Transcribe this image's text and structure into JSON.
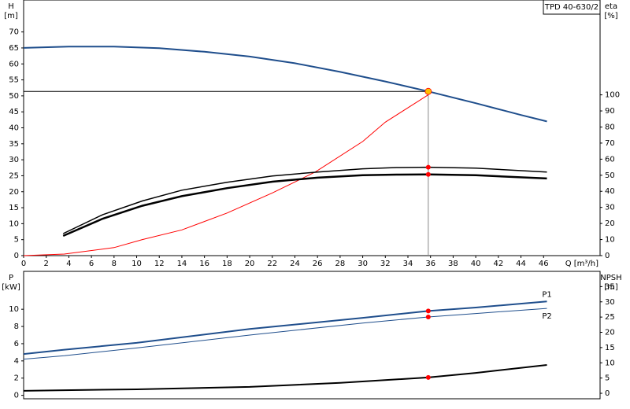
{
  "chart_data": [
    {
      "type": "line",
      "title": "TPD 40-630/2",
      "ylabel": [
        "H",
        "[m]"
      ],
      "y2label": [
        "eta",
        "[%]"
      ],
      "xlabel": "Q [m³/h]",
      "xlim": [
        0,
        51
      ],
      "xticks": [
        0,
        2,
        4,
        6,
        8,
        10,
        12,
        14,
        16,
        18,
        20,
        22,
        24,
        26,
        28,
        30,
        32,
        34,
        36,
        38,
        40,
        42,
        44,
        46
      ],
      "ylim": [
        0,
        80
      ],
      "yticks": [
        0,
        5,
        10,
        15,
        20,
        25,
        30,
        35,
        40,
        45,
        50,
        55,
        60,
        65,
        70
      ],
      "y2lim": [
        0,
        159
      ],
      "y2ticks": [
        0,
        10,
        20,
        30,
        40,
        50,
        60,
        70,
        80,
        90,
        100
      ],
      "operating_series": 0,
      "highlight_index": 9,
      "operating_color": "#ffc000",
      "highlight_color": "#ff0000",
      "series": [
        {
          "color": "#1f4e8c",
          "width": 2,
          "x": [
            0,
            4,
            8,
            12,
            16,
            20,
            24,
            28,
            32,
            35.8,
            40,
            44,
            46.3
          ],
          "values": [
            65,
            65.4,
            65.4,
            64.9,
            63.8,
            62.3,
            60.2,
            57.5,
            54.5,
            51.4,
            47.7,
            44,
            42
          ]
        },
        {
          "color": "#ff0000",
          "width": 1,
          "axis": "y2",
          "x": [
            0,
            3.6,
            8,
            10.5,
            14,
            18,
            22,
            25.8,
            30,
            32,
            35.8
          ],
          "values": [
            0,
            1,
            5,
            10,
            16,
            26.5,
            39,
            52,
            71,
            83,
            100
          ]
        },
        {
          "color": "#000000",
          "width": 1.5,
          "axis": "y2",
          "x": [
            3.5,
            7,
            10.5,
            14,
            18,
            22,
            26,
            30,
            33,
            35.8,
            40,
            46.3
          ],
          "values": [
            13.7,
            25.5,
            34,
            40.7,
            45.6,
            49.5,
            52,
            54,
            54.8,
            55,
            54.4,
            52
          ]
        },
        {
          "color": "#000000",
          "width": 2.5,
          "axis": "y2",
          "x": [
            3.5,
            7,
            10.5,
            14,
            18,
            22,
            26,
            30,
            33,
            35.8,
            40,
            46.3
          ],
          "values": [
            12.3,
            23,
            31,
            37,
            42,
            46,
            48.5,
            50,
            50.4,
            50.5,
            50,
            48
          ]
        }
      ],
      "highlights": [
        2,
        3
      ]
    },
    {
      "type": "line",
      "ylabel": [
        "P",
        "[kW]"
      ],
      "y2label": [
        "NPSH",
        "[m]"
      ],
      "xlim": [
        0,
        51
      ],
      "ylim": [
        -0.4,
        14.4
      ],
      "yticks": [
        0,
        2,
        4,
        6,
        8,
        10
      ],
      "y2lim": [
        -1.8,
        40
      ],
      "y2ticks": [
        0,
        5,
        10,
        15,
        20,
        25,
        30,
        35
      ],
      "highlight_index": 5,
      "highlight_color": "#ff0000",
      "series": [
        {
          "name": "P1",
          "color": "#1f4e8c",
          "width": 2,
          "x": [
            0,
            3.6,
            10,
            20,
            30,
            35.8,
            40,
            46.3
          ],
          "values": [
            4.8,
            5.3,
            6.1,
            7.7,
            9.0,
            9.8,
            10.2,
            10.9
          ]
        },
        {
          "name": "P2",
          "color": "#1f4e8c",
          "width": 1,
          "x": [
            0,
            3.6,
            10,
            20,
            30,
            35.8,
            40,
            46.3
          ],
          "values": [
            4.2,
            4.6,
            5.5,
            7.0,
            8.4,
            9.1,
            9.5,
            10.1
          ]
        },
        {
          "color": "#000000",
          "width": 2,
          "axis": "y2",
          "x": [
            0,
            3.6,
            10,
            20,
            28,
            35.8,
            40,
            46.3
          ],
          "values": [
            0.8,
            1.0,
            1.3,
            2.1,
            3.4,
            5.2,
            6.7,
            9.3
          ]
        }
      ],
      "highlights": [
        0,
        1,
        2
      ]
    }
  ]
}
